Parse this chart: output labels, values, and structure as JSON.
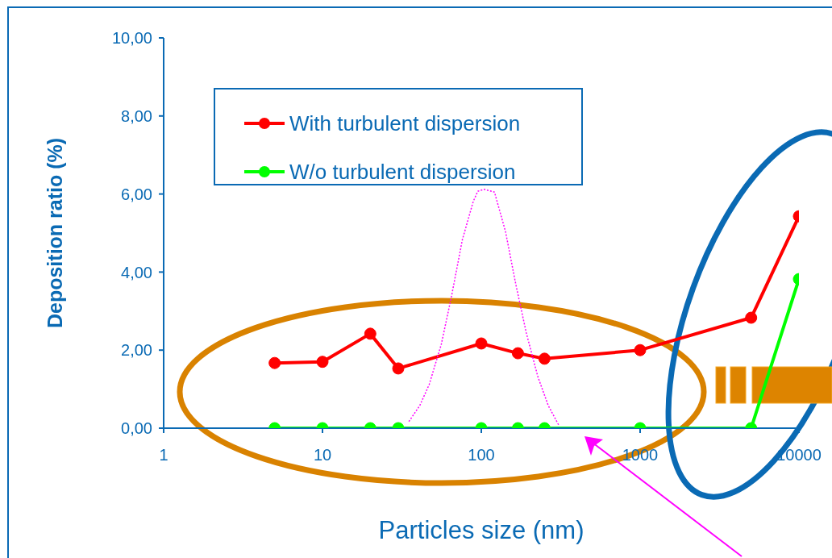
{
  "chart_data": {
    "type": "line",
    "xlabel": "Particles size (nm)",
    "ylabel": "Deposition ratio (%)",
    "log": "x",
    "xlim": [
      1,
      10000
    ],
    "xticks": [
      1,
      10,
      100,
      1000,
      10000
    ],
    "ylim": [
      0,
      10
    ],
    "yticks": [
      {
        "value": 0,
        "label": "0,00"
      },
      {
        "value": 2,
        "label": "2,00"
      },
      {
        "value": 4,
        "label": "4,00"
      },
      {
        "value": 6,
        "label": "6,00"
      },
      {
        "value": 8,
        "label": "8,00"
      },
      {
        "value": 10,
        "label": "10,00"
      }
    ],
    "grid": false,
    "legend": "top left",
    "marker": "circle",
    "line_style": "solid",
    "series": [
      {
        "name": "With turbulent dispersion",
        "color": "#ff0000",
        "x": [
          5,
          10,
          20,
          30,
          100,
          170,
          250,
          1000,
          5000,
          10000
        ],
        "values": [
          1.67,
          1.7,
          2.42,
          1.53,
          2.17,
          1.92,
          1.78,
          2.0,
          2.83,
          5.43
        ]
      },
      {
        "name": "W/o turbulent dispersion",
        "color": "#00ff00",
        "x": [
          5,
          10,
          20,
          30,
          100,
          170,
          250,
          1000,
          5000,
          10000
        ],
        "values": [
          0,
          0,
          0,
          0,
          0,
          0,
          0,
          0,
          0,
          3.82
        ]
      },
      {
        "color": "#ff00ff",
        "marker": "none",
        "line_style": "dotted",
        "x": [
          35,
          41,
          47,
          56,
          65,
          76,
          89,
          95,
          104,
          121,
          142,
          165,
          192,
          227,
          264,
          307
        ],
        "values": [
          0.17,
          0.58,
          1.12,
          2.15,
          3.39,
          4.83,
          5.81,
          6.07,
          6.12,
          6.05,
          5.04,
          3.68,
          2.44,
          1.32,
          0.58,
          0.08
        ]
      }
    ]
  }
}
